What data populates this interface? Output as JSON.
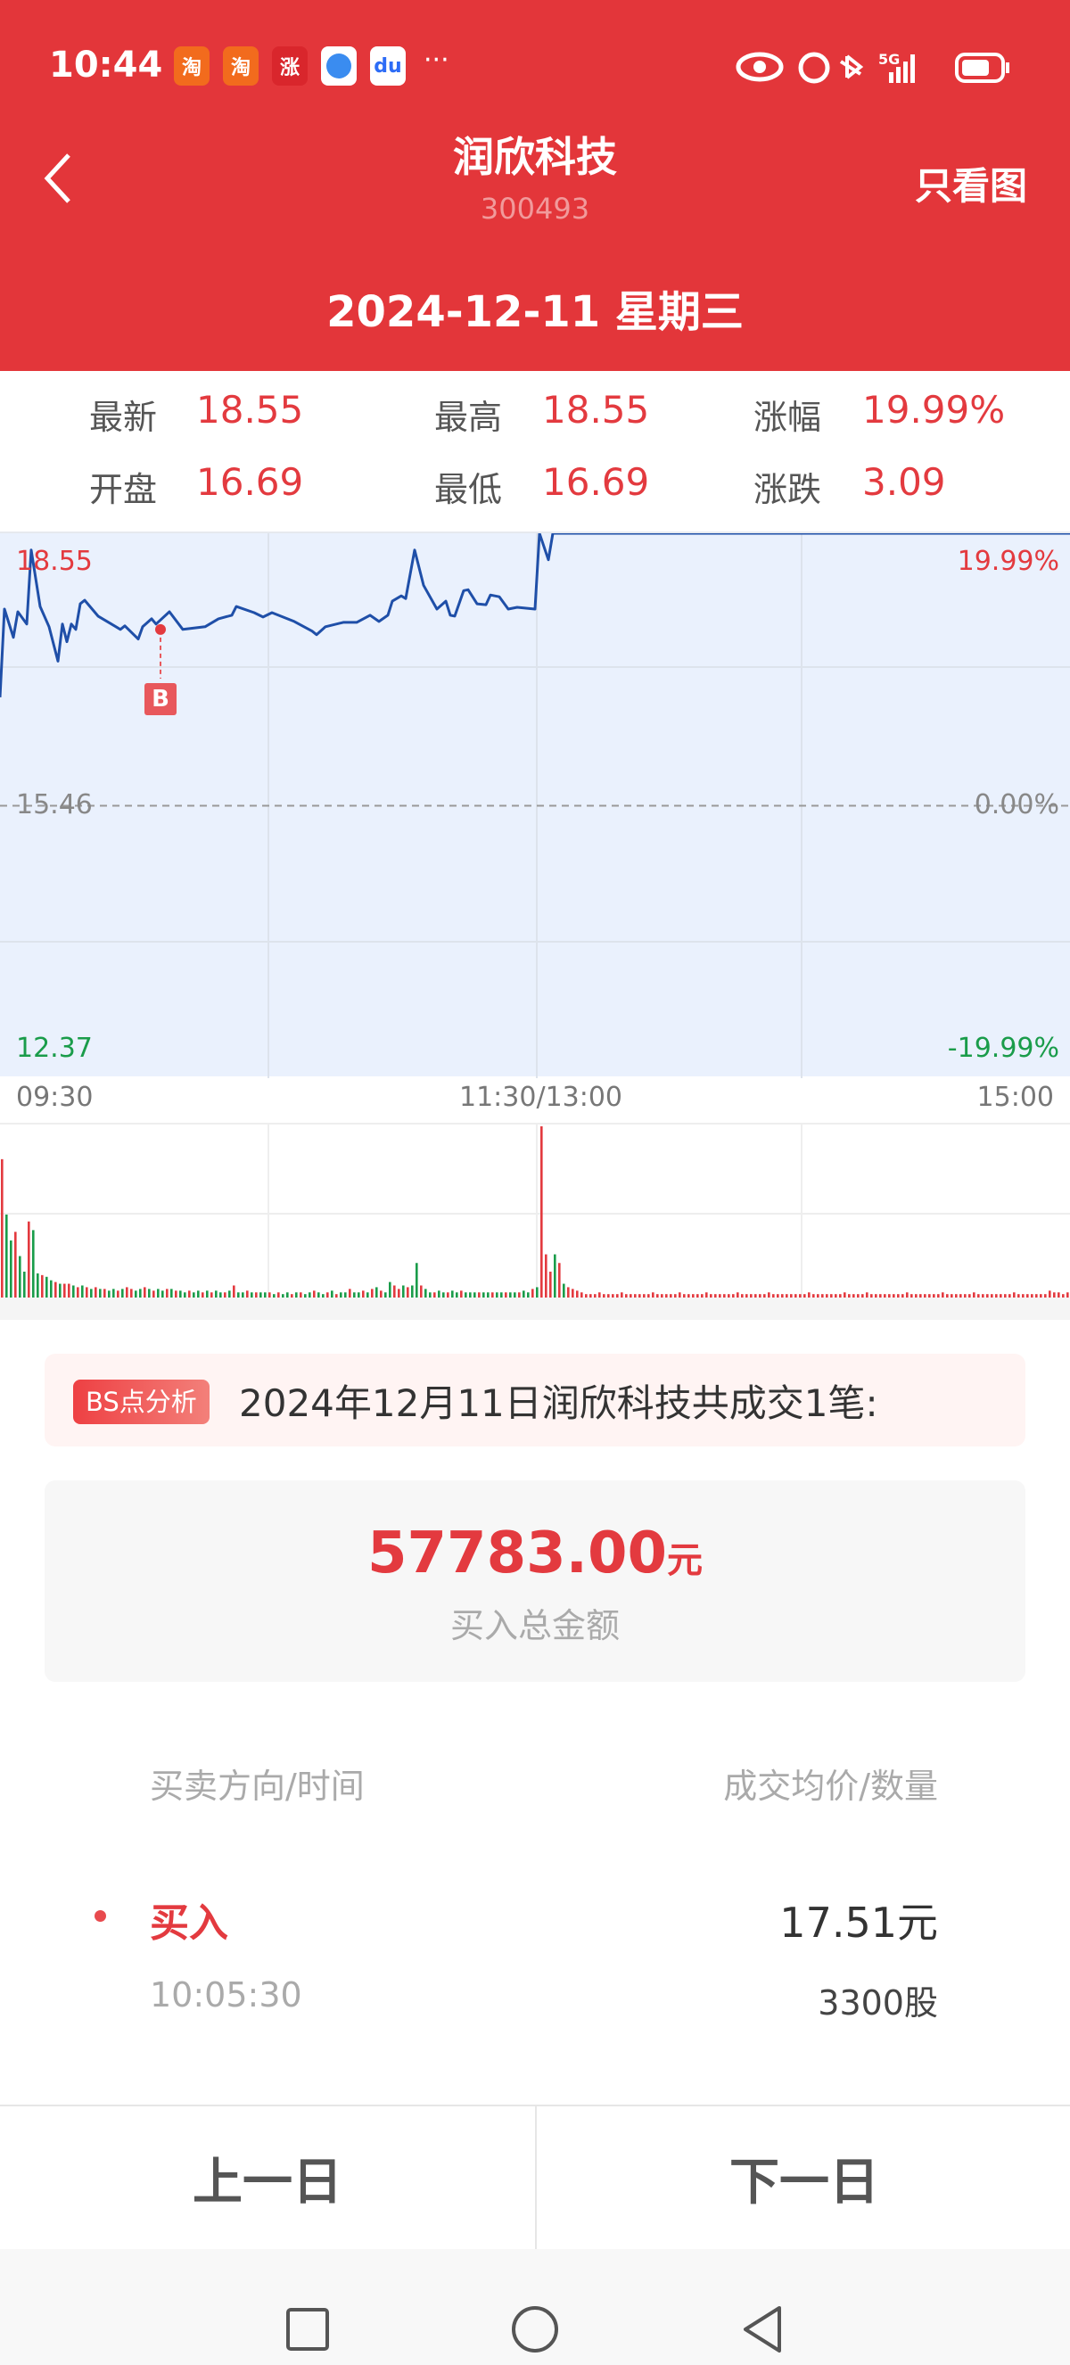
{
  "status_bar": {
    "time": "10:44",
    "network": "5G",
    "apps": [
      "淘",
      "淘",
      "涨"
    ]
  },
  "header": {
    "title": "润欣科技",
    "code": "300493",
    "only_chart": "只看图",
    "date": "2024-12-11 星期三"
  },
  "quote": {
    "latest": {
      "label": "最新",
      "value": "18.55"
    },
    "high": {
      "label": "最高",
      "value": "18.55"
    },
    "change_pct": {
      "label": "涨幅",
      "value": "19.99%"
    },
    "open": {
      "label": "开盘",
      "value": "16.69"
    },
    "low": {
      "label": "最低",
      "value": "16.69"
    },
    "change": {
      "label": "涨跌",
      "value": "3.09"
    }
  },
  "colors": {
    "brand": "#E3363A",
    "up": "#E33A3F",
    "down": "#1A9C4A",
    "line": "#1F4FA8",
    "fill": "#EAF1FD"
  },
  "chart_data": {
    "type": "line",
    "price_axis": {
      "max": "18.55",
      "mid": "15.46",
      "min": "12.37",
      "max_pct": "19.99%",
      "mid_pct": "0.00%",
      "min_pct": "-19.99%"
    },
    "ylim": [
      12.37,
      18.55
    ],
    "prev_close": 15.46,
    "time_labels": [
      "09:30",
      "11:30/13:00",
      "15:00"
    ],
    "series": [
      [
        "09:30",
        16.69
      ],
      [
        "09:31",
        17.69
      ],
      [
        "09:33",
        17.37
      ],
      [
        "09:34",
        17.66
      ],
      [
        "09:36",
        17.52
      ],
      [
        "09:37",
        18.36
      ],
      [
        "09:39",
        17.72
      ],
      [
        "09:41",
        17.49
      ],
      [
        "09:43",
        17.1
      ],
      [
        "09:44",
        17.52
      ],
      [
        "09:45",
        17.32
      ],
      [
        "09:46",
        17.52
      ],
      [
        "09:47",
        17.46
      ],
      [
        "09:48",
        17.75
      ],
      [
        "09:49",
        17.79
      ],
      [
        "09:52",
        17.61
      ],
      [
        "09:55",
        17.52
      ],
      [
        "09:57",
        17.46
      ],
      [
        "09:58",
        17.5
      ],
      [
        "10:01",
        17.35
      ],
      [
        "10:02",
        17.49
      ],
      [
        "10:04",
        17.58
      ],
      [
        "10:05",
        17.52
      ],
      [
        "10:08",
        17.66
      ],
      [
        "10:11",
        17.46
      ],
      [
        "10:16",
        17.49
      ],
      [
        "10:19",
        17.58
      ],
      [
        "10:22",
        17.62
      ],
      [
        "10:23",
        17.72
      ],
      [
        "10:27",
        17.65
      ],
      [
        "10:29",
        17.6
      ],
      [
        "10:31",
        17.65
      ],
      [
        "10:36",
        17.55
      ],
      [
        "10:40",
        17.44
      ],
      [
        "10:41",
        17.4
      ],
      [
        "10:43",
        17.49
      ],
      [
        "10:47",
        17.54
      ],
      [
        "10:50",
        17.54
      ],
      [
        "10:53",
        17.62
      ],
      [
        "10:55",
        17.55
      ],
      [
        "10:57",
        17.62
      ],
      [
        "10:58",
        17.78
      ],
      [
        "11:00",
        17.84
      ],
      [
        "11:01",
        17.81
      ],
      [
        "11:03",
        18.36
      ],
      [
        "11:05",
        17.96
      ],
      [
        "11:08",
        17.69
      ],
      [
        "11:10",
        17.78
      ],
      [
        "11:11",
        17.62
      ],
      [
        "11:12",
        17.61
      ],
      [
        "11:14",
        17.9
      ],
      [
        "11:15",
        17.91
      ],
      [
        "11:17",
        17.75
      ],
      [
        "11:19",
        17.74
      ],
      [
        "11:20",
        17.85
      ],
      [
        "11:22",
        17.83
      ],
      [
        "11:24",
        17.69
      ],
      [
        "11:26",
        17.71
      ],
      [
        "11:30",
        17.69
      ],
      [
        "13:01",
        18.55
      ],
      [
        "13:03",
        18.25
      ],
      [
        "13:04",
        18.55
      ],
      [
        "15:00",
        18.55
      ]
    ],
    "trade_marker": {
      "label": "B",
      "time": "10:05",
      "price": 17.51
    },
    "volume": {
      "start": "09:30",
      "values": [
        81,
        49,
        34,
        39,
        25,
        16,
        45,
        40,
        15,
        14,
        13,
        11,
        10,
        9,
        9,
        9,
        8,
        7,
        8,
        7,
        6,
        7,
        6,
        6,
        5,
        6,
        5,
        6,
        7,
        6,
        5,
        6,
        7,
        6,
        5,
        6,
        5,
        6,
        6,
        5,
        5,
        4,
        5,
        4,
        5,
        4,
        5,
        4,
        5,
        4,
        4,
        5,
        8,
        4,
        4,
        5,
        4,
        4,
        4,
        4,
        4,
        3,
        4,
        3,
        4,
        3,
        4,
        4,
        3,
        4,
        5,
        4,
        3,
        4,
        5,
        3,
        4,
        4,
        6,
        4,
        4,
        5,
        4,
        6,
        7,
        5,
        4,
        10,
        8,
        6,
        8,
        7,
        8,
        21,
        8,
        6,
        4,
        4,
        5,
        4,
        4,
        5,
        4,
        5,
        4,
        4,
        4,
        4,
        4,
        4,
        4,
        4,
        4,
        4,
        4,
        4,
        4,
        5,
        4,
        6,
        7,
        100,
        26,
        16,
        26,
        21,
        9,
        7,
        6,
        5,
        4,
        3,
        3,
        3,
        4,
        3,
        3,
        3,
        3,
        4,
        3,
        3,
        3,
        3,
        3,
        3,
        4,
        3,
        3,
        3,
        3,
        3,
        4,
        3,
        3,
        3,
        3,
        3,
        4,
        3,
        3,
        3,
        3,
        3,
        3,
        4,
        3,
        3,
        3,
        3,
        3,
        3,
        4,
        3,
        3,
        3,
        3,
        3,
        3,
        3,
        3,
        4,
        3,
        3,
        3,
        3,
        3,
        3,
        3,
        4,
        3,
        3,
        3,
        3,
        4,
        3,
        3,
        3,
        3,
        3,
        3,
        3,
        3,
        4,
        3,
        3,
        3,
        3,
        3,
        3,
        3,
        4,
        3,
        3,
        3,
        3,
        3,
        3,
        4,
        3,
        3,
        3,
        3,
        3,
        3,
        3,
        3,
        4,
        3,
        3,
        3,
        3,
        3,
        3,
        3,
        5,
        4,
        4,
        3,
        4,
        3
      ],
      "directions": "rggrggrggrggrgrrgrgrgrgrggrgrrggrgrggrgrggrggrgrggrgrggrgrggrgrggrgrggrggrgrggrggrgrgrggrrgrggrggrggrggrgggrggrggrggrggrgrrrgrgrrrrrrrrrrrrrrrrrrrrrrrrrrrrrrrrrrrrrrrrrrrrrrrrrrrrrrrrrrrrrrrrrrrrrrrrrrrrrrrrrrrrrrrrrrrrrrrrrrrrrrrrrrrrrrrrrrr"
    }
  },
  "bs_analysis": {
    "badge": "BS点分析",
    "summary": "2024年12月11日润欣科技共成交1笔:"
  },
  "total": {
    "amount": "57783.00",
    "unit": "元",
    "label": "买入总金额"
  },
  "trades": {
    "header_left": "买卖方向/时间",
    "header_right": "成交均价/数量",
    "items": [
      {
        "direction": "买入",
        "time": "10:05:30",
        "price": "17.51元",
        "quantity": "3300股"
      }
    ]
  },
  "footer": {
    "prev": "上一日",
    "next": "下一日"
  },
  "nav_bar": {
    "icons": [
      "recents-square-icon",
      "home-circle-icon",
      "back-triangle-icon"
    ]
  }
}
